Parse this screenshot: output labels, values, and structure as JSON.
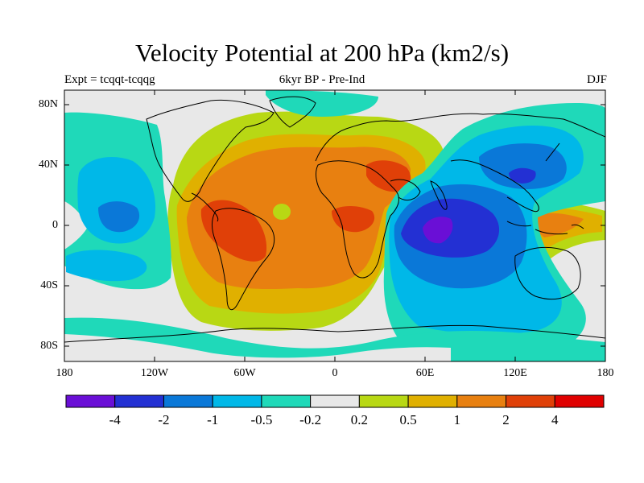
{
  "title": "Velocity Potential at 200 hPa (km2/s)",
  "subtitle_left": "Expt = tcqqt-tcqqg",
  "subtitle_center": "6kyr BP - Pre-Ind",
  "subtitle_right": "DJF",
  "axes": {
    "lat_ticks": [
      "80N",
      "40N",
      "0",
      "40S",
      "80S"
    ],
    "lon_ticks": [
      "180",
      "120W",
      "60W",
      "0",
      "60E",
      "120E",
      "180"
    ]
  },
  "colorbar": {
    "labels": [
      "-4",
      "-2",
      "-1",
      "-0.5",
      "-0.2",
      "0.2",
      "0.5",
      "1",
      "2",
      "4"
    ],
    "colors": [
      "#6a0fd6",
      "#2330d3",
      "#0a78d8",
      "#00b8e8",
      "#1fd9b9",
      "#e8e8e8",
      "#b8d814",
      "#e0b000",
      "#e88010",
      "#e04008",
      "#e00000"
    ]
  },
  "map_colors": {
    "background": "#e8e8e8",
    "coastline": "#000000"
  }
}
